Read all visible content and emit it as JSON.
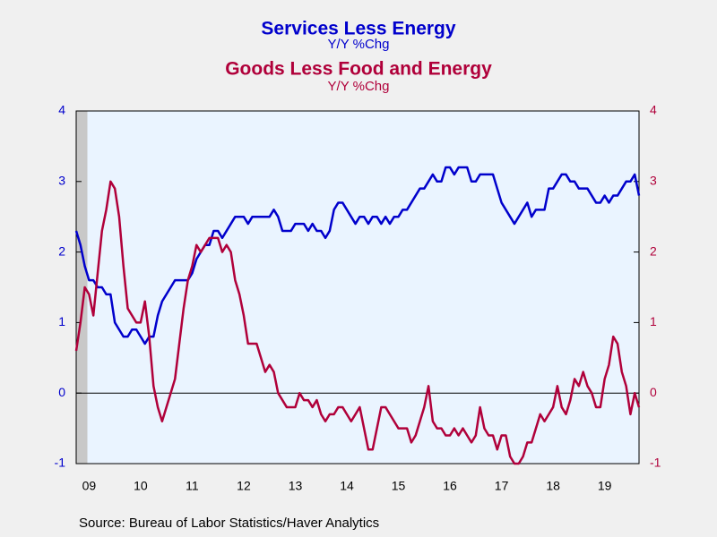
{
  "chart_data": {
    "type": "line",
    "title": "Services Less Energy",
    "subtitle": "Y/Y %Chg",
    "title2": "Goods Less Food and Energy",
    "subtitle2": "Y/Y %Chg",
    "source": "Source:  Bureau of Labor Statistics/Haver Analytics",
    "categories": [
      null,
      null,
      null,
      "09",
      null,
      null,
      null,
      null,
      null,
      null,
      null,
      null,
      null,
      null,
      null,
      "10",
      null,
      null,
      null,
      null,
      null,
      null,
      null,
      null,
      null,
      null,
      null,
      "11",
      null,
      null,
      null,
      null,
      null,
      null,
      null,
      null,
      null,
      null,
      null,
      "12",
      null,
      null,
      null,
      null,
      null,
      null,
      null,
      null,
      null,
      null,
      null,
      "13",
      null,
      null,
      null,
      null,
      null,
      null,
      null,
      null,
      null,
      null,
      null,
      "14",
      null,
      null,
      null,
      null,
      null,
      null,
      null,
      null,
      null,
      null,
      null,
      "15",
      null,
      null,
      null,
      null,
      null,
      null,
      null,
      null,
      null,
      null,
      null,
      "16",
      null,
      null,
      null,
      null,
      null,
      null,
      null,
      null,
      null,
      null,
      null,
      "17",
      null,
      null,
      null,
      null,
      null,
      null,
      null,
      null,
      null,
      null,
      null,
      "18",
      null,
      null,
      null,
      null,
      null,
      null,
      null,
      null,
      null,
      null,
      null,
      "19",
      null,
      null,
      null,
      null,
      null,
      null,
      null,
      null
    ],
    "series": [
      {
        "name": "Services Less Energy",
        "color": "#0000cc",
        "axis": "y",
        "values": [
          2.3,
          2.1,
          1.8,
          1.6,
          1.6,
          1.5,
          1.5,
          1.4,
          1.4,
          1.0,
          0.9,
          0.8,
          0.8,
          0.9,
          0.9,
          0.8,
          0.7,
          0.8,
          0.8,
          1.1,
          1.3,
          1.4,
          1.5,
          1.6,
          1.6,
          1.6,
          1.6,
          1.7,
          1.9,
          2.0,
          2.1,
          2.1,
          2.3,
          2.3,
          2.2,
          2.3,
          2.4,
          2.5,
          2.5,
          2.5,
          2.4,
          2.5,
          2.5,
          2.5,
          2.5,
          2.5,
          2.6,
          2.5,
          2.3,
          2.3,
          2.3,
          2.4,
          2.4,
          2.4,
          2.3,
          2.4,
          2.3,
          2.3,
          2.2,
          2.3,
          2.6,
          2.7,
          2.7,
          2.6,
          2.5,
          2.4,
          2.5,
          2.5,
          2.4,
          2.5,
          2.5,
          2.4,
          2.5,
          2.4,
          2.5,
          2.5,
          2.6,
          2.6,
          2.7,
          2.8,
          2.9,
          2.9,
          3.0,
          3.1,
          3.0,
          3.0,
          3.2,
          3.2,
          3.1,
          3.2,
          3.2,
          3.2,
          3.0,
          3.0,
          3.1,
          3.1,
          3.1,
          3.1,
          2.9,
          2.7,
          2.6,
          2.5,
          2.4,
          2.5,
          2.6,
          2.7,
          2.5,
          2.6,
          2.6,
          2.6,
          2.9,
          2.9,
          3.0,
          3.1,
          3.1,
          3.0,
          3.0,
          2.9,
          2.9,
          2.9,
          2.8,
          2.7,
          2.7,
          2.8,
          2.7,
          2.8,
          2.8,
          2.9,
          3.0,
          3.0,
          3.1,
          2.8
        ]
      },
      {
        "name": "Goods Less Food and Energy",
        "color": "#b0003a",
        "axis": "y2",
        "values": [
          0.6,
          1.0,
          1.5,
          1.4,
          1.1,
          1.7,
          2.3,
          2.6,
          3.0,
          2.9,
          2.5,
          1.8,
          1.2,
          1.1,
          1.0,
          1.0,
          1.3,
          0.8,
          0.1,
          -0.2,
          -0.4,
          -0.2,
          0.0,
          0.2,
          0.7,
          1.2,
          1.6,
          1.8,
          2.1,
          2.0,
          2.1,
          2.2,
          2.2,
          2.2,
          2.0,
          2.1,
          2.0,
          1.6,
          1.4,
          1.1,
          0.7,
          0.7,
          0.7,
          0.5,
          0.3,
          0.4,
          0.3,
          0.0,
          -0.1,
          -0.2,
          -0.2,
          -0.2,
          0.0,
          -0.1,
          -0.1,
          -0.2,
          -0.1,
          -0.3,
          -0.4,
          -0.3,
          -0.3,
          -0.2,
          -0.2,
          -0.3,
          -0.4,
          -0.3,
          -0.2,
          -0.5,
          -0.8,
          -0.8,
          -0.5,
          -0.2,
          -0.2,
          -0.3,
          -0.4,
          -0.5,
          -0.5,
          -0.5,
          -0.7,
          -0.6,
          -0.4,
          -0.2,
          0.1,
          -0.4,
          -0.5,
          -0.5,
          -0.6,
          -0.6,
          -0.5,
          -0.6,
          -0.5,
          -0.6,
          -0.7,
          -0.6,
          -0.2,
          -0.5,
          -0.6,
          -0.6,
          -0.8,
          -0.6,
          -0.6,
          -0.9,
          -1.0,
          -1.0,
          -0.9,
          -0.7,
          -0.7,
          -0.5,
          -0.3,
          -0.4,
          -0.3,
          -0.2,
          0.1,
          -0.2,
          -0.3,
          -0.1,
          0.2,
          0.1,
          0.3,
          0.1,
          0.0,
          -0.2,
          -0.2,
          0.2,
          0.4,
          0.8,
          0.7,
          0.3,
          0.1,
          -0.3,
          0.0,
          -0.2
        ]
      }
    ],
    "ylim": [
      -1,
      4
    ],
    "yticks": [
      -1,
      0,
      1,
      2,
      3,
      4
    ],
    "y2lim": [
      -1,
      4
    ],
    "y2ticks": [
      -1,
      0,
      1,
      2,
      3,
      4
    ],
    "grid": false
  }
}
